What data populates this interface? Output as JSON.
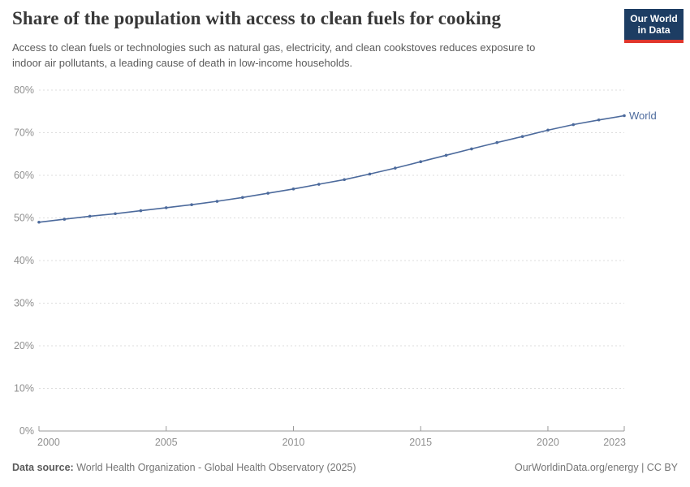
{
  "header": {
    "title": "Share of the population with access to clean fuels for cooking",
    "subtitle_line1": "Access to clean fuels or technologies such as natural gas, electricity, and clean cookstoves reduces exposure to",
    "subtitle_line2": "indoor air pollutants, a leading cause of death in low-income households.",
    "logo": {
      "line1": "Our World",
      "line2": "in Data",
      "bg_color": "#1d3d63",
      "bar_color": "#e0362c",
      "text_color": "#ffffff"
    }
  },
  "chart_data": {
    "type": "line",
    "title": "Share of the population with access to clean fuels for cooking",
    "xlabel": "",
    "ylabel": "",
    "ylim": [
      0,
      80
    ],
    "yticks": [
      0,
      10,
      20,
      30,
      40,
      50,
      60,
      70,
      80
    ],
    "ytick_suffix": "%",
    "xticks": [
      2000,
      2005,
      2010,
      2015,
      2020,
      2023
    ],
    "grid": "horizontal-dashed",
    "legend_position": "end-of-line",
    "axis_color": "#999999",
    "grid_color": "#dcdcdc",
    "tick_label_color": "#8f8f8f",
    "series": [
      {
        "name": "World",
        "color": "#4c6a9c",
        "x": [
          2000,
          2001,
          2002,
          2003,
          2004,
          2005,
          2006,
          2007,
          2008,
          2009,
          2010,
          2011,
          2012,
          2013,
          2014,
          2015,
          2016,
          2017,
          2018,
          2019,
          2020,
          2021,
          2022,
          2023
        ],
        "values": [
          49.0,
          49.7,
          50.4,
          51.0,
          51.7,
          52.4,
          53.1,
          53.9,
          54.8,
          55.8,
          56.8,
          57.9,
          59.0,
          60.3,
          61.7,
          63.2,
          64.7,
          66.2,
          67.7,
          69.1,
          70.6,
          71.9,
          73.0,
          74.0
        ]
      }
    ]
  },
  "footer": {
    "data_source_label": "Data source:",
    "data_source_value": "World Health Organization - Global Health Observatory (2025)",
    "credit": "OurWorldinData.org/energy | CC BY"
  }
}
